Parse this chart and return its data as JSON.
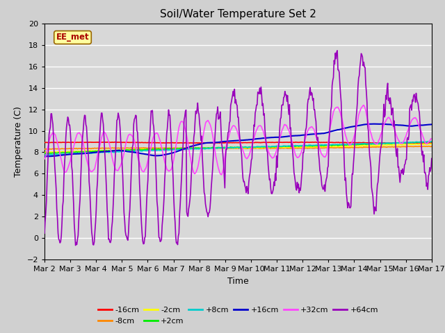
{
  "title": "Soil/Water Temperature Set 2",
  "xlabel": "Time",
  "ylabel": "Temperature (C)",
  "ylim": [
    -2,
    20
  ],
  "xlim": [
    0,
    15
  ],
  "x_tick_labels": [
    "Mar 2",
    "Mar 3",
    "Mar 4",
    "Mar 5",
    "Mar 6",
    "Mar 7",
    "Mar 8",
    "Mar 9",
    "Mar 10",
    "Mar 11",
    "Mar 12",
    "Mar 13",
    "Mar 14",
    "Mar 15",
    "Mar 16",
    "Mar 17"
  ],
  "background_color": "#d0d0d0",
  "plot_bg_color": "#d8d8d8",
  "grid_color": "#ffffff",
  "series": {
    "-16cm": {
      "color": "#ff0000",
      "linewidth": 1.2
    },
    "-8cm": {
      "color": "#ff8800",
      "linewidth": 1.2
    },
    "-2cm": {
      "color": "#ffff00",
      "linewidth": 1.2
    },
    "+2cm": {
      "color": "#00ee00",
      "linewidth": 1.2
    },
    "+8cm": {
      "color": "#00cccc",
      "linewidth": 1.2
    },
    "+16cm": {
      "color": "#0000cc",
      "linewidth": 1.5
    },
    "+32cm": {
      "color": "#ff44ff",
      "linewidth": 1.2
    },
    "+64cm": {
      "color": "#9900bb",
      "linewidth": 1.2
    }
  },
  "ee_met_label": "EE_met",
  "title_fontsize": 11,
  "axis_fontsize": 9,
  "tick_fontsize": 8
}
